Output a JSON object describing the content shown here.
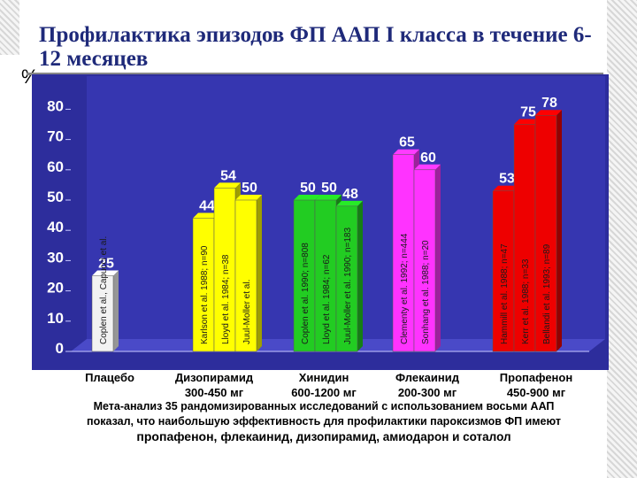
{
  "slide": {
    "title": "Профилактика эпизодов ФП ААП I класса в течение 6-12 месяцев",
    "y_unit": "%",
    "footnote_line1": "Мета-анализ 35 рандомизированных исследований с использованием восьми ААП",
    "footnote_line2": "показал, что наибольшую эффективность для профилактики пароксизмов ФП имеют",
    "footnote_emph": "пропафенон, флекаинид,",
    "footnote_rest": " дизопирамид, амиодарон и соталол"
  },
  "chart_data": {
    "type": "bar",
    "title": "Профилактика эпизодов ФП ААП I класса в течение 6-12 месяцев",
    "ylabel": "%",
    "ylim": [
      0,
      80
    ],
    "yticks": [
      0,
      10,
      20,
      30,
      40,
      50,
      60,
      70,
      80
    ],
    "grid": false,
    "categories": [
      {
        "name": "Плацебо",
        "dose": ""
      },
      {
        "name": "Дизопирамид",
        "dose": "300-450 мг"
      },
      {
        "name": "Хинидин",
        "dose": "600-1200 мг"
      },
      {
        "name": "Флекаинид",
        "dose": "200-300 мг"
      },
      {
        "name": "Пропафенон",
        "dose": "450-900 мг"
      }
    ],
    "bars": [
      {
        "group": 0,
        "value": 25,
        "study": "Coplen et al., Capucci et al.",
        "color": "#f2f2f2"
      },
      {
        "group": 1,
        "value": 44,
        "study": "Karlson et al. 1988; n=90",
        "color": "#ffff00"
      },
      {
        "group": 1,
        "value": 54,
        "study": "Lloyd et al. 1984; n=38",
        "color": "#ffff00"
      },
      {
        "group": 1,
        "value": 50,
        "study": "Juul-Moller et al.",
        "color": "#ffff00"
      },
      {
        "group": 2,
        "value": 50,
        "study": "Coplen et al. 1990; n=808",
        "color": "#22cc22"
      },
      {
        "group": 2,
        "value": 50,
        "study": "Lloyd et al. 1984; n=62",
        "color": "#22cc22"
      },
      {
        "group": 2,
        "value": 48,
        "study": "Juul-Moller et al. 1990; n=183",
        "color": "#22cc22"
      },
      {
        "group": 3,
        "value": 65,
        "study": "Clementy et al. 1992; n=444",
        "color": "#ff33ff"
      },
      {
        "group": 3,
        "value": 60,
        "study": "Sonhang et al. 1988; n=20",
        "color": "#ff33ff"
      },
      {
        "group": 4,
        "value": 53,
        "study": "Hammill et al. 1988; n=47",
        "color": "#ee0000"
      },
      {
        "group": 4,
        "value": 75,
        "study": "Kerr et al. 1988; n=33",
        "color": "#ee0000"
      },
      {
        "group": 4,
        "value": 78,
        "study": "Bellandi et al. 1993; n=89",
        "color": "#ee0000"
      }
    ]
  },
  "colors": {
    "plot_background": "#2d2d9c",
    "title_color": "#1f2a7a"
  }
}
